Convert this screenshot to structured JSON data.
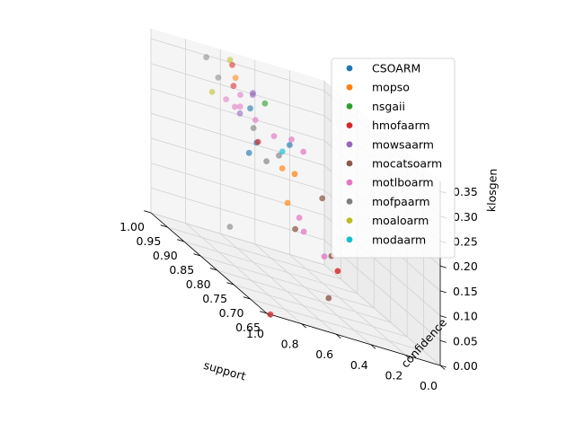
{
  "chart_data": {
    "type": "scatter",
    "projection": "3d",
    "xlabel": "support",
    "ylabel": "confidence",
    "zlabel": "klosgen",
    "xlim": [
      0.0,
      1.0
    ],
    "ylim": [
      0.65,
      1.0
    ],
    "zlim": [
      0.0,
      0.37
    ],
    "x_ticks": [
      "0.0",
      "0.2",
      "0.4",
      "0.6",
      "0.8",
      "1.0"
    ],
    "y_ticks": [
      "0.65",
      "0.70",
      "0.75",
      "0.80",
      "0.85",
      "0.90",
      "0.95",
      "1.00"
    ],
    "z_ticks": [
      "0.00",
      "0.05",
      "0.10",
      "0.15",
      "0.20",
      "0.25",
      "0.30",
      "0.35"
    ],
    "grid": true,
    "legend_position": "upper-right",
    "series": [
      {
        "name": "CSOARM",
        "color": "#1f77b4",
        "points": [
          {
            "x": 0.62,
            "y": 0.88,
            "z": 0.25
          },
          {
            "x": 0.74,
            "y": 0.84,
            "z": 0.24
          },
          {
            "x": 0.58,
            "y": 0.92,
            "z": 0.3
          },
          {
            "x": 0.2,
            "y": 1.0,
            "z": 0.22
          }
        ]
      },
      {
        "name": "mopso",
        "color": "#ff7f0e",
        "points": [
          {
            "x": 0.3,
            "y": 0.97,
            "z": 0.18
          },
          {
            "x": 0.4,
            "y": 0.88,
            "z": 0.21
          },
          {
            "x": 0.25,
            "y": 0.98,
            "z": 0.11
          },
          {
            "x": 0.55,
            "y": 0.98,
            "z": 0.33
          }
        ]
      },
      {
        "name": "nsgaii",
        "color": "#2ca02c",
        "points": [
          {
            "x": 0.4,
            "y": 0.97,
            "z": 0.3
          }
        ]
      },
      {
        "name": "hmofaarm",
        "color": "#d62728",
        "points": [
          {
            "x": 0.55,
            "y": 0.99,
            "z": 0.35
          },
          {
            "x": 0.6,
            "y": 0.96,
            "z": 0.32
          },
          {
            "x": 0.65,
            "y": 0.86,
            "z": 0.26
          },
          {
            "x": 0.4,
            "y": 0.75,
            "z": 0.09
          },
          {
            "x": 0.98,
            "y": 0.65,
            "z": 0.0
          }
        ]
      },
      {
        "name": "mowsaarm",
        "color": "#9467bd",
        "points": [
          {
            "x": 0.45,
            "y": 0.98,
            "z": 0.31
          },
          {
            "x": 0.47,
            "y": 0.97,
            "z": 0.31
          },
          {
            "x": 0.62,
            "y": 0.93,
            "z": 0.28
          }
        ]
      },
      {
        "name": "mocatsoarm",
        "color": "#8c564b",
        "points": [
          {
            "x": 0.15,
            "y": 0.9,
            "z": 0.06
          },
          {
            "x": 0.05,
            "y": 0.98,
            "z": 0.14
          },
          {
            "x": 0.3,
            "y": 0.83,
            "z": 0.0
          },
          {
            "x": 0.55,
            "y": 0.8,
            "z": 0.13
          }
        ]
      },
      {
        "name": "motlboarm",
        "color": "#e377c2",
        "points": [
          {
            "x": 0.38,
            "y": 0.9,
            "z": 0.27
          },
          {
            "x": 0.55,
            "y": 0.92,
            "z": 0.28
          },
          {
            "x": 0.6,
            "y": 0.94,
            "z": 0.29
          },
          {
            "x": 0.65,
            "y": 0.93,
            "z": 0.29
          },
          {
            "x": 0.35,
            "y": 0.88,
            "z": 0.26
          },
          {
            "x": 0.5,
            "y": 0.89,
            "z": 0.27
          },
          {
            "x": 0.42,
            "y": 0.78,
            "z": 0.1
          },
          {
            "x": 0.45,
            "y": 0.84,
            "z": 0.14
          },
          {
            "x": 0.5,
            "y": 0.8,
            "z": 0.13
          },
          {
            "x": 0.7,
            "y": 0.93,
            "z": 0.3
          },
          {
            "x": 0.58,
            "y": 0.95,
            "z": 0.31
          }
        ]
      },
      {
        "name": "mofpaarm",
        "color": "#7f7f7f",
        "points": [
          {
            "x": 0.7,
            "y": 0.99,
            "z": 0.35
          },
          {
            "x": 0.6,
            "y": 0.9,
            "z": 0.27
          },
          {
            "x": 0.62,
            "y": 0.85,
            "z": 0.23
          },
          {
            "x": 0.85,
            "y": 0.84,
            "z": 0.08
          },
          {
            "x": 0.3,
            "y": 0.98,
            "z": 0.2
          },
          {
            "x": 0.65,
            "y": 0.98,
            "z": 0.32
          }
        ]
      },
      {
        "name": "moaloarm",
        "color": "#bcbd22",
        "points": [
          {
            "x": 0.62,
            "y": 0.96,
            "z": 0.37
          },
          {
            "x": 0.8,
            "y": 0.92,
            "z": 0.31
          }
        ]
      },
      {
        "name": "modaarm",
        "color": "#17becf",
        "points": [
          {
            "x": 0.28,
            "y": 0.98,
            "z": 0.21
          }
        ]
      }
    ]
  }
}
